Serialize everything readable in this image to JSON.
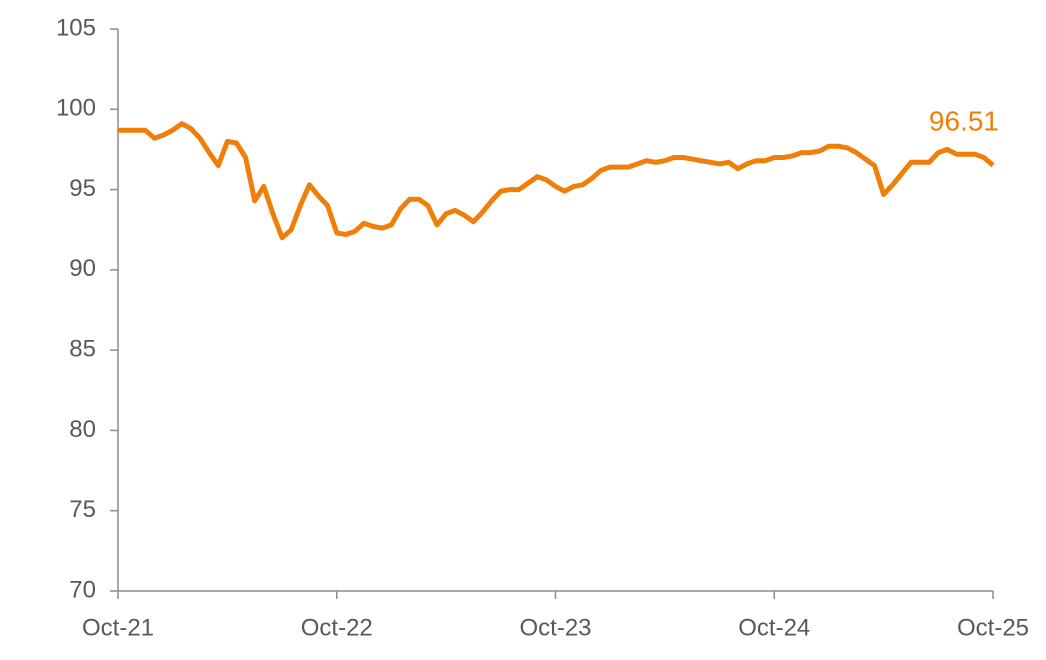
{
  "chart_data": {
    "type": "line",
    "categories": [
      "Oct-21",
      null,
      null,
      null,
      null,
      null,
      null,
      null,
      null,
      null,
      null,
      null,
      null,
      null,
      null,
      null,
      null,
      null,
      null,
      null,
      null,
      null,
      null,
      null,
      "Oct-22",
      null,
      null,
      null,
      null,
      null,
      null,
      null,
      null,
      null,
      null,
      null,
      null,
      null,
      null,
      null,
      null,
      null,
      null,
      null,
      null,
      null,
      null,
      null,
      "Oct-23",
      null,
      null,
      null,
      null,
      null,
      null,
      null,
      null,
      null,
      null,
      null,
      null,
      null,
      null,
      null,
      null,
      null,
      null,
      null,
      null,
      null,
      null,
      null,
      "Oct-24",
      null,
      null,
      null,
      null,
      null,
      null,
      null,
      null,
      null,
      null,
      null,
      null,
      null,
      null,
      null,
      null,
      null,
      null,
      null,
      null,
      null,
      null,
      null,
      "Oct-25"
    ],
    "values": [
      98.7,
      98.7,
      98.7,
      98.7,
      98.2,
      98.4,
      98.7,
      99.1,
      98.8,
      98.2,
      97.3,
      96.5,
      98.0,
      97.9,
      97.0,
      94.3,
      95.2,
      93.5,
      92.0,
      92.5,
      94.0,
      95.3,
      94.6,
      94.0,
      92.3,
      92.2,
      92.4,
      92.9,
      92.7,
      92.6,
      92.8,
      93.8,
      94.4,
      94.4,
      94.0,
      92.8,
      93.5,
      93.7,
      93.4,
      93.0,
      93.6,
      94.3,
      94.9,
      95.0,
      95.0,
      95.4,
      95.8,
      95.6,
      95.2,
      94.9,
      95.2,
      95.3,
      95.7,
      96.2,
      96.4,
      96.4,
      96.4,
      96.6,
      96.8,
      96.7,
      96.8,
      97.0,
      97.0,
      96.9,
      96.8,
      96.7,
      96.6,
      96.7,
      96.3,
      96.6,
      96.8,
      96.8,
      97.0,
      97.0,
      97.1,
      97.3,
      97.3,
      97.4,
      97.7,
      97.7,
      97.6,
      97.3,
      96.9,
      96.5,
      94.7,
      95.3,
      96.0,
      96.7,
      96.7,
      96.7,
      97.3,
      97.5,
      97.2,
      97.2,
      97.2,
      97.0,
      96.51
    ],
    "color": "#f07f09",
    "annotation": "96.51",
    "ylim": [
      70,
      105
    ],
    "yticks": [
      70,
      75,
      80,
      85,
      90,
      95,
      100,
      105
    ],
    "grid": false
  }
}
